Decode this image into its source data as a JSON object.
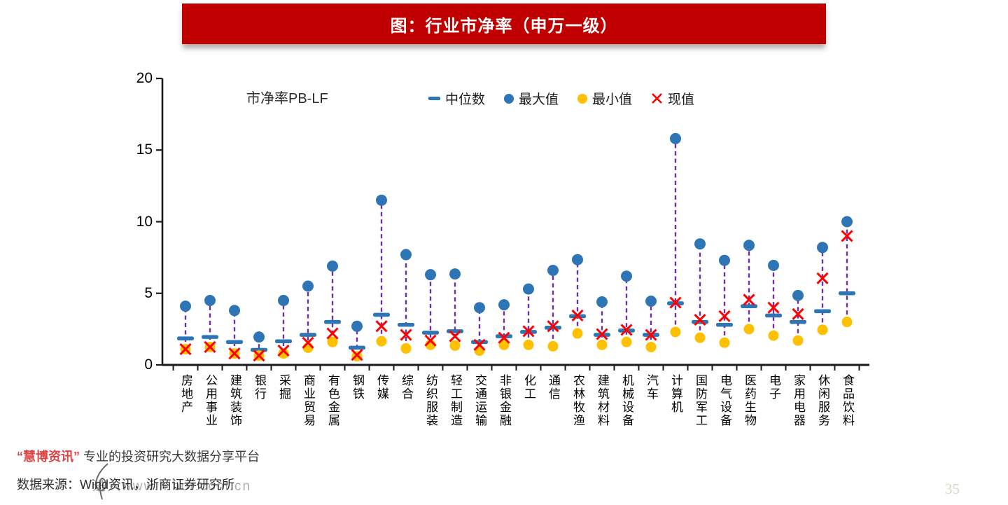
{
  "title": "图：行业市净率（申万一级）",
  "colors": {
    "banner": "#C00000",
    "blue": "#2E75B6",
    "yellow": "#FFC000",
    "red": "#FF0000",
    "purple": "#7030A0",
    "axis": "#1a1a1a",
    "footer_red": "#E04343"
  },
  "chart_data": {
    "type": "scatter",
    "title": "市净率PB-LF",
    "xlabel": "",
    "ylabel": "",
    "ylim": [
      0,
      20
    ],
    "yticks": [
      0,
      5,
      10,
      15,
      20
    ],
    "grid": false,
    "legend_position": "top",
    "categories": [
      "房地产",
      "公用事业",
      "建筑装饰",
      "银行",
      "采掘",
      "商业贸易",
      "有色金属",
      "钢铁",
      "传媒",
      "综合",
      "纺织服装",
      "轻工制造",
      "交通运输",
      "非银金融",
      "化工",
      "通信",
      "农林牧渔",
      "建筑材料",
      "机械设备",
      "汽车",
      "计算机",
      "国防军工",
      "电气设备",
      "医药生物",
      "电子",
      "家用电器",
      "休闲服务",
      "食品饮料"
    ],
    "series": [
      {
        "name": "中位数",
        "marker": "dash",
        "color": "#2E75B6",
        "values": [
          1.85,
          1.95,
          1.6,
          1.05,
          1.65,
          2.1,
          3.0,
          1.2,
          3.5,
          2.8,
          2.25,
          2.35,
          1.6,
          2.0,
          2.3,
          2.6,
          3.4,
          2.1,
          2.4,
          2.1,
          4.3,
          3.0,
          2.8,
          4.1,
          3.45,
          3.0,
          3.75,
          5.0
        ]
      },
      {
        "name": "最大值",
        "marker": "circle",
        "color": "#2E75B6",
        "values": [
          4.1,
          4.5,
          3.8,
          1.95,
          4.5,
          5.5,
          6.9,
          2.7,
          11.5,
          7.7,
          6.3,
          6.35,
          4.0,
          4.2,
          5.3,
          6.6,
          7.35,
          4.4,
          6.2,
          4.45,
          15.8,
          8.45,
          7.3,
          8.35,
          6.95,
          4.85,
          8.2,
          10.0
        ]
      },
      {
        "name": "最小值",
        "marker": "circle",
        "color": "#FFC000",
        "values": [
          1.1,
          1.25,
          0.8,
          0.65,
          0.8,
          1.2,
          1.6,
          0.6,
          1.65,
          1.15,
          1.4,
          1.35,
          1.0,
          1.4,
          1.4,
          1.3,
          2.2,
          1.4,
          1.6,
          1.25,
          2.3,
          1.9,
          1.55,
          2.5,
          2.05,
          1.7,
          2.45,
          3.0
        ]
      },
      {
        "name": "现值",
        "marker": "x",
        "color": "#FF0000",
        "values": [
          1.1,
          1.25,
          0.8,
          0.65,
          1.0,
          1.55,
          2.2,
          0.7,
          2.7,
          2.1,
          1.7,
          2.0,
          1.4,
          1.9,
          2.35,
          2.7,
          3.45,
          2.15,
          2.45,
          2.1,
          4.35,
          3.15,
          3.4,
          4.55,
          4.0,
          3.55,
          6.05,
          9.0
        ]
      }
    ]
  },
  "footer": {
    "brand_quote": "“慧博资讯”",
    "brand_tagline": "专业的投资研究大数据分享平台",
    "source": "数据来源：Wind资讯，浙商证券研究所",
    "watermark": "进入www.hibor.com.cn"
  },
  "page_number": "35"
}
